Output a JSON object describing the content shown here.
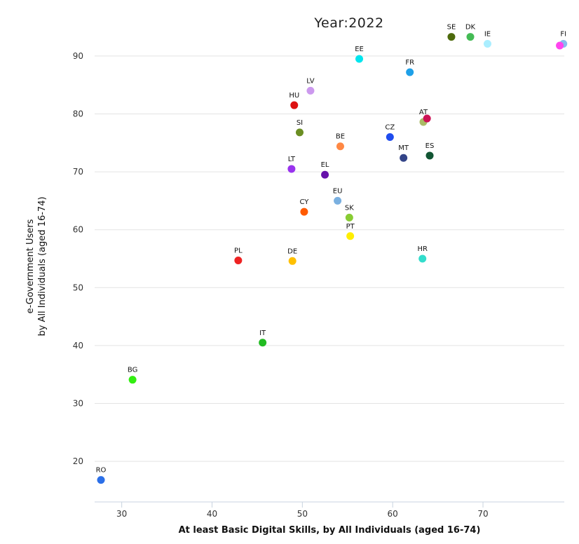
{
  "chart_data": {
    "type": "scatter",
    "title": "Year:2022",
    "xlabel": "At least Basic Digital Skills, by All Individuals (aged 16-74)",
    "ylabel_line1": "e-Government Users",
    "ylabel_line2": "by All Individuals (aged 16-74)",
    "xlim": [
      27,
      79
    ],
    "ylim": [
      13,
      97
    ],
    "xticks": [
      30,
      40,
      50,
      60,
      70
    ],
    "yticks": [
      20,
      30,
      40,
      50,
      60,
      70,
      80,
      90
    ],
    "grid": true,
    "points": [
      {
        "label": "RO",
        "x": 27.7,
        "y": 16.8,
        "color": "#2b6fe8"
      },
      {
        "label": "BG",
        "x": 31.2,
        "y": 34.1,
        "color": "#33ee11"
      },
      {
        "label": "IT",
        "x": 45.6,
        "y": 40.5,
        "color": "#22bb22"
      },
      {
        "label": "PL",
        "x": 42.9,
        "y": 54.7,
        "color": "#ee2222"
      },
      {
        "label": "DE",
        "x": 48.9,
        "y": 54.6,
        "color": "#ffc000"
      },
      {
        "label": "CY",
        "x": 50.2,
        "y": 63.1,
        "color": "#ff5a00"
      },
      {
        "label": "LT",
        "x": 48.8,
        "y": 70.5,
        "color": "#9933ee"
      },
      {
        "label": "EL",
        "x": 52.5,
        "y": 69.5,
        "color": "#6611aa"
      },
      {
        "label": "SI",
        "x": 49.7,
        "y": 76.8,
        "color": "#6b8e23"
      },
      {
        "label": "HU",
        "x": 49.1,
        "y": 81.5,
        "color": "#dd1111"
      },
      {
        "label": "LV",
        "x": 50.9,
        "y": 84.0,
        "color": "#cc99ee"
      },
      {
        "label": "BE",
        "x": 54.2,
        "y": 74.4,
        "color": "#ff8844"
      },
      {
        "label": "EU",
        "x": 53.9,
        "y": 65.0,
        "color": "#7ab0e0"
      },
      {
        "label": "SK",
        "x": 55.2,
        "y": 62.1,
        "color": "#88cc33"
      },
      {
        "label": "PT",
        "x": 55.3,
        "y": 58.9,
        "color": "#ffee00"
      },
      {
        "label": "EE",
        "x": 56.3,
        "y": 89.5,
        "color": "#00e5ee"
      },
      {
        "label": "CZ",
        "x": 59.7,
        "y": 76.0,
        "color": "#1f4cee"
      },
      {
        "label": "MT",
        "x": 61.2,
        "y": 72.4,
        "color": "#334488"
      },
      {
        "label": "FR",
        "x": 61.9,
        "y": 87.2,
        "color": "#1ea0e8"
      },
      {
        "label": "HR",
        "x": 63.3,
        "y": 55.0,
        "color": "#33ddcc"
      },
      {
        "label": "ES",
        "x": 64.1,
        "y": 72.8,
        "color": "#115533"
      },
      {
        "label": "AT",
        "x": 63.4,
        "y": 78.6,
        "color": "#aabb66"
      },
      {
        "label": "",
        "x": 63.8,
        "y": 79.2,
        "color": "#cc1155"
      },
      {
        "label": "SE",
        "x": 66.5,
        "y": 93.3,
        "color": "#4d6a0c"
      },
      {
        "label": "DK",
        "x": 68.6,
        "y": 93.3,
        "color": "#44bb55"
      },
      {
        "label": "IE",
        "x": 70.5,
        "y": 92.1,
        "color": "#aaeeff"
      },
      {
        "label": "FI",
        "x": 78.9,
        "y": 92.1,
        "color": "#88bbee"
      },
      {
        "label": "",
        "x": 78.5,
        "y": 91.8,
        "color": "#ff44ee"
      }
    ]
  }
}
